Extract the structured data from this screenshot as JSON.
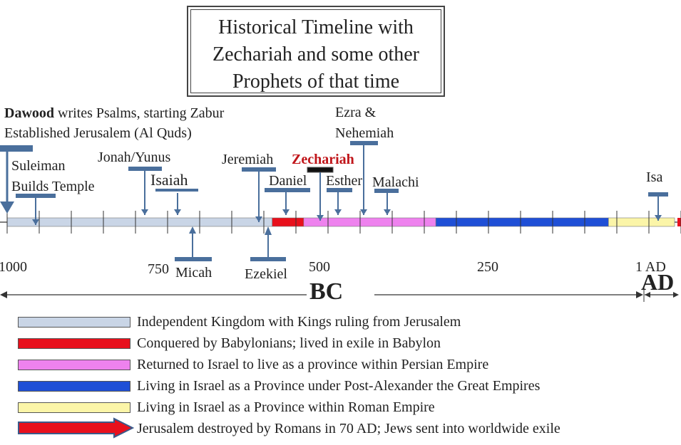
{
  "title": {
    "line1": "Historical Timeline with",
    "line2": "Zechariah and some other",
    "line3": "Prophets of that time"
  },
  "events": {
    "dawood_bold": "Dawood",
    "dawood_rest": " writes Psalms, starting Zabur",
    "jerusalem": "Established Jerusalem (Al Quds)",
    "suleiman1": "Suleiman",
    "suleiman2": "Builds Temple",
    "jonah": "Jonah/Yunus",
    "isaiah": "Isaiah",
    "jeremiah": "Jeremiah",
    "zechariah": "Zechariah",
    "ezra1": "Ezra &",
    "ezra2": "Nehemiah",
    "daniel": "Daniel",
    "esther": "Esther",
    "malachi": "Malachi",
    "isa": "Isa",
    "micah": "Micah",
    "ezekiel": "Ezekiel"
  },
  "axis": {
    "t1000": "1000",
    "t750": "750",
    "t500": "500",
    "t250": "250",
    "t1ad": "1 AD",
    "bc": "BC",
    "ad": "AD"
  },
  "periods": [
    {
      "from": 1000,
      "to": 587,
      "color": "#c9d5e6"
    },
    {
      "from": 587,
      "to": 538,
      "color": "#e8101c"
    },
    {
      "from": 538,
      "to": 332,
      "color": "#ee82ee"
    },
    {
      "from": 332,
      "to": 63,
      "color": "#1f4fd6"
    },
    {
      "from": 63,
      "to": -40,
      "color": "#fbf5a8"
    }
  ],
  "legend": [
    {
      "color": "#c9d5e6",
      "text": "Independent Kingdom with Kings ruling  from Jerusalem"
    },
    {
      "color": "#e8101c",
      "text": "Conquered by Babylonians; lived in exile in Babylon"
    },
    {
      "color": "#ee82ee",
      "text": "Returned to Israel to live as a province within Persian Empire"
    },
    {
      "color": "#1f4fd6",
      "text": "Living in Israel as a Province under Post-Alexander the Great Empires"
    },
    {
      "color": "#fbf5a8",
      "text": "Living in Israel as a Province within Roman Empire"
    },
    {
      "color": "#e8101c",
      "text": "Jerusalem destroyed by Romans in 70 AD; Jews sent into worldwide exile"
    }
  ],
  "colors": {
    "marker": "#4a6f9c",
    "zechariah": "#c0151a",
    "arrow_border": "#3a5a8a"
  }
}
